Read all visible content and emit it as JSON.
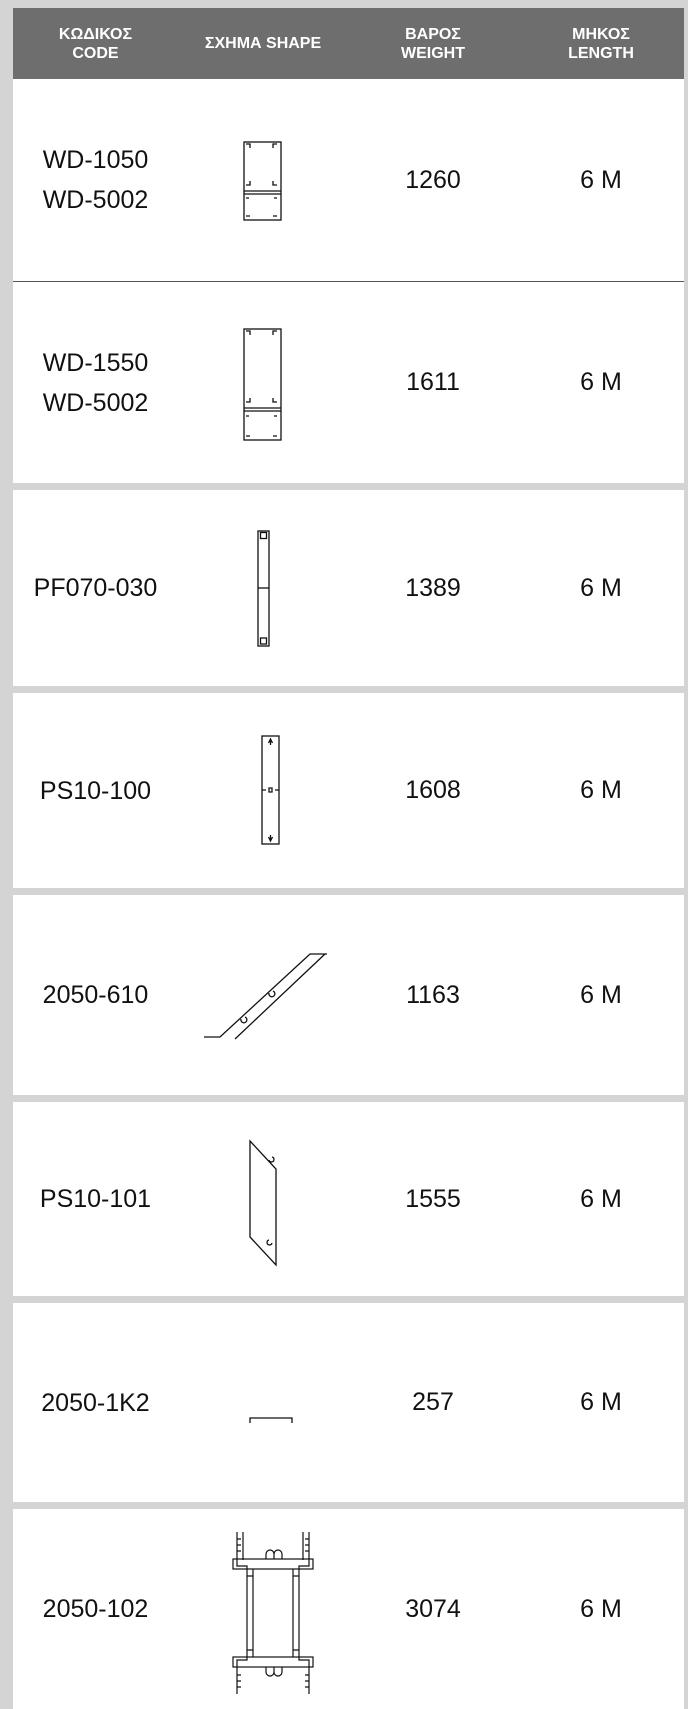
{
  "header": {
    "code_gr": "ΚΩΔΙΚΟΣ",
    "code_en": "CODE",
    "shape": "ΣΧΗΜΑ SHAPE",
    "weight_gr": "ΒΑΡΟΣ",
    "weight_en": "WEIGHT",
    "length_gr": "ΜΗΚΟΣ",
    "length_en": "LENGTH"
  },
  "rows": [
    {
      "code1": "WD-1050",
      "code2": "WD-5002",
      "shape_icon": "double-box-profile-icon",
      "weight": "1260",
      "length": "6 M"
    },
    {
      "code1": "WD-1550",
      "code2": "WD-5002",
      "shape_icon": "tall-double-box-profile-icon",
      "weight": "1611",
      "length": "6 M"
    },
    {
      "code1": "PF070-030",
      "shape_icon": "narrow-bar-profile-icon",
      "weight": "1389",
      "length": "6 M"
    },
    {
      "code1": "PS10-100",
      "shape_icon": "narrow-bar-hook-profile-icon",
      "weight": "1608",
      "length": "6 M"
    },
    {
      "code1": "2050-610",
      "shape_icon": "diagonal-profile-icon",
      "weight": "1163",
      "length": "6 M"
    },
    {
      "code1": "PS10-101",
      "shape_icon": "slanted-parallelogram-profile-icon",
      "weight": "1555",
      "length": "6 M"
    },
    {
      "code1": "2050-1K2",
      "shape_icon": "flat-channel-profile-icon",
      "weight": "257",
      "length": "6 M"
    },
    {
      "code1": "2050-102",
      "shape_icon": "h-beam-profile-icon",
      "weight": "3074",
      "length": "6 M"
    }
  ]
}
